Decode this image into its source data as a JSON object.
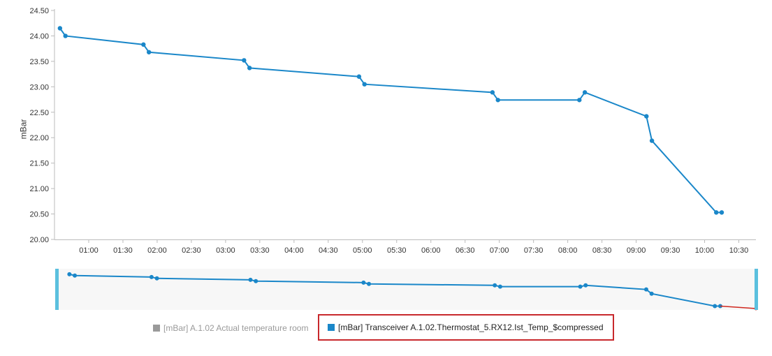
{
  "chart_data": {
    "type": "line",
    "ylabel": "mBar",
    "ylim": [
      20.0,
      24.5
    ],
    "yticks": [
      "20.00",
      "20.50",
      "21.00",
      "21.50",
      "22.00",
      "22.50",
      "23.00",
      "23.50",
      "24.00",
      "24.50"
    ],
    "ytick_values": [
      20.0,
      20.5,
      21.0,
      21.5,
      22.0,
      22.5,
      23.0,
      23.5,
      24.0,
      24.5
    ],
    "xlim": [
      0.5,
      10.75
    ],
    "xticks": [
      "01:00",
      "01:30",
      "02:00",
      "02:30",
      "03:00",
      "03:30",
      "04:00",
      "04:30",
      "05:00",
      "05:30",
      "06:00",
      "06:30",
      "07:00",
      "07:30",
      "08:00",
      "08:30",
      "09:00",
      "09:30",
      "10:00",
      "10:30"
    ],
    "xtick_values": [
      1.0,
      1.5,
      2.0,
      2.5,
      3.0,
      3.5,
      4.0,
      4.5,
      5.0,
      5.5,
      6.0,
      6.5,
      7.0,
      7.5,
      8.0,
      8.5,
      9.0,
      9.5,
      10.0,
      10.5
    ],
    "grid": false,
    "series": [
      {
        "name": "[mBar] Transceiver A.1.02.Thermostat_5.RX12.Ist_Temp_$compressed",
        "color": "#1a87c9",
        "x": [
          0.58,
          0.66,
          1.8,
          1.88,
          3.27,
          3.35,
          4.95,
          5.03,
          6.9,
          6.98,
          8.17,
          8.25,
          9.15,
          9.23,
          10.17,
          10.25
        ],
        "y": [
          24.15,
          24.0,
          23.83,
          23.68,
          23.52,
          23.37,
          23.2,
          23.05,
          22.89,
          22.74,
          22.74,
          22.89,
          22.42,
          21.94,
          20.53,
          20.53
        ]
      }
    ],
    "hidden_series": [
      {
        "name": "[mBar] A.1.02 Actual temperature room",
        "color": "#9a9a9a"
      }
    ],
    "navigator_tail": {
      "color": "#d0281f",
      "x": [
        10.25,
        10.78
      ],
      "y": [
        20.53,
        20.25
      ]
    }
  },
  "legend": {
    "items": [
      {
        "label": "[mBar] A.1.02 Actual temperature room",
        "color": "#9a9a9a",
        "visible": false
      },
      {
        "label": "[mBar] Transceiver A.1.02.Thermostat_5.RX12.Ist_Temp_$compressed",
        "color": "#1a87c9",
        "visible": true
      }
    ]
  },
  "navigator": {
    "handle_color": "#5bc0de",
    "background": "#f7f7f7"
  }
}
